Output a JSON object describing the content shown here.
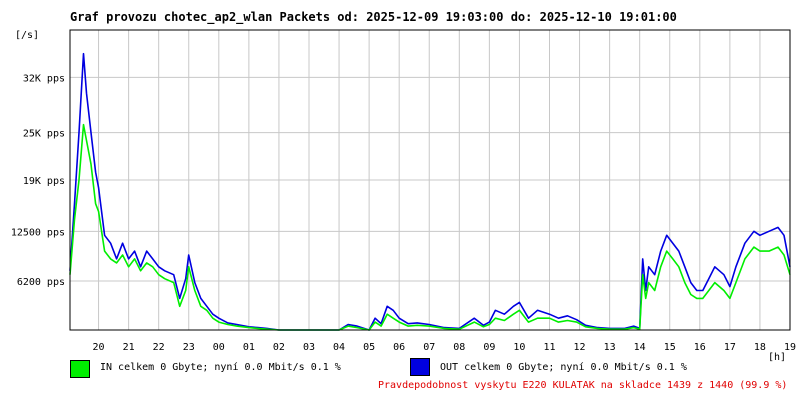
{
  "title": "Graf provozu chotec_ap2_wlan Packets od: 2025-12-09 19:03:00 do: 2025-12-10 19:01:00",
  "unit": "[/s]",
  "xunit": "[h]",
  "legend": {
    "in_label": "IN celkem 0 Gbyte; nyní   0.0 Mbit/s 0.1 %",
    "out_label": "OUT celkem 0 Gbyte; nyní   0.0 Mbit/s 0.1 %"
  },
  "probability": "Pravdepodobnost vyskytu E220 KULATAK na skladce 1439 z 1440 (99.9 %)",
  "colors": {
    "in": "#00ee00",
    "out": "#0000e0",
    "grid": "#c8c8c8",
    "prob": "#e00000"
  },
  "chart_data": {
    "type": "line",
    "xlabel": "[h]",
    "ylabel": "[/s]",
    "ylim": [
      0,
      38000
    ],
    "yticks": [
      {
        "value": 6200,
        "label": "6200 pps"
      },
      {
        "value": 12500,
        "label": "12500 pps"
      },
      {
        "value": 19000,
        "label": "19K pps"
      },
      {
        "value": 25000,
        "label": "25K pps"
      },
      {
        "value": 32000,
        "label": "32K pps"
      }
    ],
    "xlim": [
      19.05,
      43.0
    ],
    "xticks": [
      {
        "value": 20,
        "label": "20"
      },
      {
        "value": 21,
        "label": "21"
      },
      {
        "value": 22,
        "label": "22"
      },
      {
        "value": 23,
        "label": "23"
      },
      {
        "value": 24,
        "label": "00"
      },
      {
        "value": 25,
        "label": "01"
      },
      {
        "value": 26,
        "label": "02"
      },
      {
        "value": 27,
        "label": "03"
      },
      {
        "value": 28,
        "label": "04"
      },
      {
        "value": 29,
        "label": "05"
      },
      {
        "value": 30,
        "label": "06"
      },
      {
        "value": 31,
        "label": "07"
      },
      {
        "value": 32,
        "label": "08"
      },
      {
        "value": 33,
        "label": "09"
      },
      {
        "value": 34,
        "label": "10"
      },
      {
        "value": 35,
        "label": "11"
      },
      {
        "value": 36,
        "label": "12"
      },
      {
        "value": 37,
        "label": "13"
      },
      {
        "value": 38,
        "label": "14"
      },
      {
        "value": 39,
        "label": "15"
      },
      {
        "value": 40,
        "label": "16"
      },
      {
        "value": 41,
        "label": "17"
      },
      {
        "value": 42,
        "label": "18"
      },
      {
        "value": 43,
        "label": "19"
      }
    ],
    "grid": true,
    "series": [
      {
        "name": "IN",
        "x": [
          19.05,
          19.2,
          19.35,
          19.5,
          19.6,
          19.75,
          19.9,
          20.0,
          20.2,
          20.4,
          20.6,
          20.8,
          21.0,
          21.2,
          21.4,
          21.6,
          21.8,
          22.0,
          22.2,
          22.5,
          22.7,
          22.9,
          23.0,
          23.2,
          23.4,
          23.6,
          23.8,
          24.0,
          24.3,
          24.6,
          25.0,
          25.3,
          25.6,
          26.0,
          27.0,
          28.0,
          28.3,
          28.6,
          29.0,
          29.2,
          29.4,
          29.6,
          29.8,
          30.0,
          30.3,
          30.6,
          31.0,
          31.5,
          32.0,
          32.5,
          32.8,
          33.0,
          33.2,
          33.5,
          33.8,
          34.0,
          34.3,
          34.6,
          35.0,
          35.3,
          35.6,
          35.9,
          36.2,
          36.6,
          37.0,
          37.5,
          37.8,
          38.0,
          38.1,
          38.2,
          38.3,
          38.5,
          38.7,
          38.9,
          39.1,
          39.3,
          39.5,
          39.7,
          39.9,
          40.1,
          40.3,
          40.5,
          40.8,
          41.0,
          41.2,
          41.5,
          41.8,
          42.0,
          42.3,
          42.6,
          42.8,
          43.0
        ],
        "values": [
          7000,
          14000,
          19000,
          26000,
          24000,
          21000,
          16000,
          15000,
          10000,
          9000,
          8500,
          9500,
          8000,
          9000,
          7500,
          8500,
          8000,
          7000,
          6500,
          6000,
          3000,
          5000,
          8000,
          5000,
          3000,
          2500,
          1500,
          1000,
          700,
          500,
          300,
          200,
          100,
          0,
          0,
          0,
          500,
          300,
          0,
          1000,
          500,
          2000,
          1500,
          1000,
          500,
          600,
          500,
          200,
          100,
          1000,
          400,
          700,
          1500,
          1200,
          2000,
          2500,
          1000,
          1500,
          1500,
          1000,
          1200,
          1000,
          400,
          200,
          100,
          100,
          300,
          100,
          7000,
          4000,
          6000,
          5000,
          8000,
          10000,
          9000,
          8000,
          6000,
          4500,
          4000,
          4000,
          5000,
          6000,
          5000,
          4000,
          6000,
          9000,
          10500,
          10000,
          10000,
          10500,
          9500,
          7000
        ]
      },
      {
        "name": "OUT",
        "x": [
          19.05,
          19.2,
          19.35,
          19.5,
          19.6,
          19.75,
          19.9,
          20.0,
          20.2,
          20.4,
          20.6,
          20.8,
          21.0,
          21.2,
          21.4,
          21.6,
          21.8,
          22.0,
          22.2,
          22.5,
          22.7,
          22.9,
          23.0,
          23.2,
          23.4,
          23.6,
          23.8,
          24.0,
          24.3,
          24.6,
          25.0,
          25.3,
          25.6,
          26.0,
          27.0,
          28.0,
          28.3,
          28.6,
          29.0,
          29.2,
          29.4,
          29.6,
          29.8,
          30.0,
          30.3,
          30.6,
          31.0,
          31.5,
          32.0,
          32.5,
          32.8,
          33.0,
          33.2,
          33.5,
          33.8,
          34.0,
          34.3,
          34.6,
          35.0,
          35.3,
          35.6,
          35.9,
          36.2,
          36.6,
          37.0,
          37.5,
          37.8,
          38.0,
          38.1,
          38.2,
          38.3,
          38.5,
          38.7,
          38.9,
          39.1,
          39.3,
          39.5,
          39.7,
          39.9,
          40.1,
          40.3,
          40.5,
          40.8,
          41.0,
          41.2,
          41.5,
          41.8,
          42.0,
          42.3,
          42.6,
          42.8,
          43.0
        ],
        "values": [
          7500,
          16000,
          25000,
          35000,
          30000,
          25000,
          20000,
          18000,
          12000,
          11000,
          9000,
          11000,
          9000,
          10000,
          8000,
          10000,
          9000,
          8000,
          7500,
          7000,
          4000,
          6500,
          9500,
          6000,
          4000,
          3000,
          2000,
          1500,
          900,
          700,
          400,
          300,
          200,
          0,
          0,
          0,
          700,
          500,
          0,
          1500,
          800,
          3000,
          2500,
          1500,
          800,
          900,
          700,
          300,
          200,
          1500,
          600,
          1000,
          2500,
          2000,
          3000,
          3500,
          1500,
          2500,
          2000,
          1500,
          1800,
          1300,
          600,
          300,
          200,
          200,
          500,
          200,
          9000,
          5000,
          8000,
          7000,
          10000,
          12000,
          11000,
          10000,
          8000,
          6000,
          5000,
          5000,
          6500,
          8000,
          7000,
          5500,
          8000,
          11000,
          12500,
          12000,
          12500,
          13000,
          12000,
          8000
        ]
      }
    ]
  }
}
